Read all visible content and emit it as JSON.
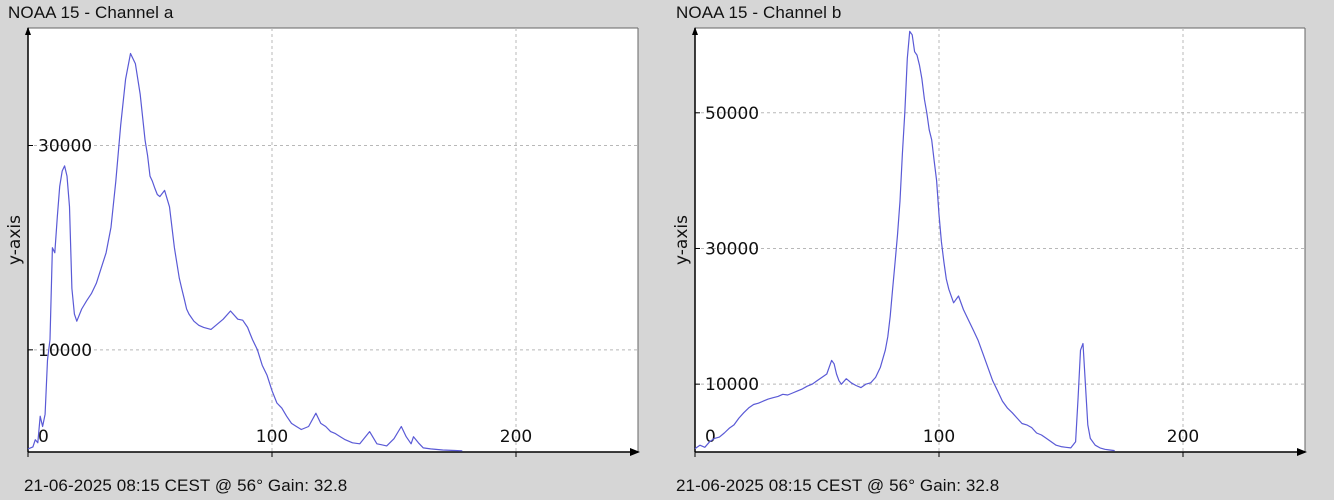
{
  "panels": [
    {
      "title": "NOAA 15 - Channel a",
      "footer": "21-06-2025 08:15 CEST @ 56° Gain: 32.8"
    },
    {
      "title": "NOAA 15 - Channel b",
      "footer": "21-06-2025 08:15 CEST @ 56° Gain: 32.8"
    }
  ],
  "colors": {
    "background": "#d6d6d6",
    "plot_area": "#ffffff",
    "line": "#5a5ad6",
    "grid": "#b8b8b8",
    "axis": "#000000"
  },
  "chart_data": [
    {
      "type": "line",
      "title": "NOAA 15 - Channel a",
      "xlabel": "",
      "ylabel": "y-axis",
      "xlim": [
        0,
        250
      ],
      "ylim": [
        0,
        41500
      ],
      "xticks": [
        0,
        100,
        200
      ],
      "yticks": [
        10000,
        30000
      ],
      "xtick_labels": [
        "0",
        "100",
        "200"
      ],
      "ytick_labels": [
        "10000",
        "30000"
      ],
      "y_zero_label": "0",
      "grid": true,
      "series": [
        {
          "x": [
            0,
            2,
            3,
            4,
            5,
            6,
            7,
            8,
            9,
            10,
            11,
            12,
            13,
            14,
            15,
            16,
            17,
            18,
            19,
            20,
            22,
            24,
            26,
            28,
            30,
            32,
            34,
            36,
            38,
            40,
            42,
            44,
            46,
            48,
            49,
            50,
            51,
            52,
            53,
            54,
            56,
            58,
            60,
            62,
            63,
            64,
            65,
            66,
            68,
            70,
            72,
            75,
            78,
            80,
            83,
            86,
            88,
            90,
            91,
            92,
            94,
            96,
            98,
            100,
            102,
            104,
            106,
            108,
            110,
            112,
            115,
            118,
            120,
            122,
            124,
            126,
            128,
            130,
            133,
            136,
            140,
            143,
            145,
            147,
            150,
            153,
            155,
            157,
            158,
            160,
            162,
            165,
            170,
            175,
            178
          ],
          "values": [
            300,
            500,
            1200,
            900,
            3500,
            2500,
            3700,
            9000,
            11000,
            20000,
            19500,
            23000,
            26000,
            27500,
            28000,
            27000,
            24000,
            16000,
            13500,
            12800,
            14000,
            14800,
            15500,
            16500,
            18000,
            19500,
            22000,
            26500,
            32000,
            36500,
            39000,
            38000,
            35000,
            30500,
            29000,
            27000,
            26500,
            25800,
            25200,
            25000,
            25600,
            24000,
            20000,
            17000,
            16000,
            15000,
            14000,
            13500,
            12800,
            12400,
            12200,
            12000,
            12600,
            13000,
            13800,
            13000,
            12900,
            12200,
            11600,
            11000,
            10000,
            8500,
            7500,
            6000,
            4800,
            4300,
            3500,
            2800,
            2500,
            2200,
            2500,
            3800,
            2800,
            2500,
            2000,
            1800,
            1500,
            1200,
            900,
            800,
            2000,
            800,
            700,
            600,
            1300,
            2500,
            1500,
            800,
            1500,
            900,
            400,
            300,
            200,
            150,
            120
          ]
        }
      ]
    },
    {
      "type": "line",
      "title": "NOAA 15 - Channel b",
      "xlabel": "",
      "ylabel": "y-axis",
      "xlim": [
        0,
        250
      ],
      "ylim": [
        0,
        62500
      ],
      "xticks": [
        0,
        100,
        200
      ],
      "yticks": [
        10000,
        30000,
        50000
      ],
      "xtick_labels": [
        "0",
        "100",
        "200"
      ],
      "ytick_labels": [
        "10000",
        "30000",
        "50000"
      ],
      "y_zero_label": "0",
      "grid": true,
      "series": [
        {
          "x": [
            0,
            2,
            4,
            6,
            8,
            10,
            12,
            14,
            16,
            18,
            20,
            22,
            24,
            26,
            28,
            30,
            32,
            34,
            36,
            38,
            40,
            42,
            44,
            46,
            48,
            50,
            52,
            54,
            55,
            56,
            57,
            58,
            59,
            60,
            62,
            64,
            66,
            68,
            70,
            72,
            74,
            76,
            78,
            79,
            80,
            81,
            82,
            83,
            84,
            85,
            86,
            87,
            88,
            89,
            90,
            91,
            92,
            93,
            94,
            95,
            96,
            97,
            98,
            99,
            100,
            101,
            102,
            103,
            104,
            106,
            108,
            110,
            112,
            114,
            116,
            118,
            120,
            122,
            124,
            126,
            128,
            130,
            132,
            134,
            136,
            138,
            140,
            142,
            144,
            146,
            148,
            150,
            152,
            154,
            156,
            157,
            158,
            159,
            160,
            161,
            162,
            164,
            166,
            168,
            170,
            172
          ],
          "values": [
            500,
            1000,
            700,
            1500,
            2000,
            2200,
            2800,
            3500,
            4000,
            5000,
            5800,
            6500,
            7000,
            7200,
            7500,
            7800,
            8000,
            8200,
            8500,
            8400,
            8700,
            9000,
            9300,
            9700,
            10000,
            10500,
            11000,
            11500,
            12500,
            13500,
            13000,
            11500,
            10500,
            10000,
            10800,
            10200,
            9800,
            9500,
            10000,
            10200,
            11000,
            12500,
            15000,
            17000,
            20000,
            24000,
            28000,
            32000,
            37000,
            44000,
            50000,
            58000,
            62000,
            61500,
            59000,
            58500,
            57000,
            55000,
            52000,
            50000,
            47500,
            46000,
            43000,
            40000,
            35000,
            31000,
            28000,
            25500,
            24000,
            22000,
            23000,
            21000,
            19500,
            18000,
            16500,
            14500,
            12500,
            10500,
            9000,
            7500,
            6500,
            5800,
            5000,
            4200,
            4000,
            3600,
            2800,
            2500,
            2000,
            1500,
            1000,
            800,
            700,
            600,
            1500,
            8000,
            15000,
            16000,
            10000,
            4000,
            2000,
            1000,
            600,
            400,
            300,
            200
          ]
        }
      ]
    }
  ]
}
